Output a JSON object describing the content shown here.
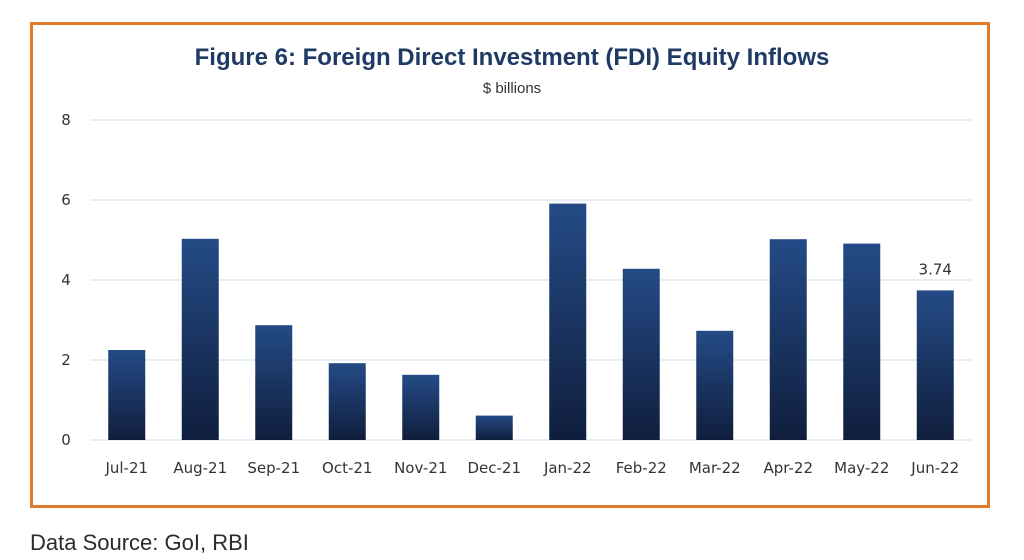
{
  "chart_data": {
    "type": "bar",
    "title": "Figure 6: Foreign Direct Investment (FDI) Equity Inflows",
    "subtitle": "$ billions",
    "categories": [
      "Jul-21",
      "Aug-21",
      "Sep-21",
      "Oct-21",
      "Nov-21",
      "Dec-21",
      "Jan-22",
      "Feb-22",
      "Mar-22",
      "Apr-22",
      "May-22",
      "Jun-22"
    ],
    "values": [
      2.25,
      5.03,
      2.87,
      1.92,
      1.63,
      0.61,
      5.91,
      4.28,
      2.73,
      5.02,
      4.91,
      3.74
    ],
    "ylim": [
      0,
      8
    ],
    "yticks": [
      0,
      2,
      4,
      6,
      8
    ],
    "grid": true,
    "data_labels": [
      {
        "category": "Jun-22",
        "text": "3.74"
      }
    ],
    "colors": {
      "bar_top": "#244B86",
      "bar_bottom": "#101E3D",
      "grid": "#D6E2EE",
      "frame": "#E07B2C",
      "title": "#1F3A64"
    }
  },
  "footer": {
    "source": "Data Source: GoI, RBI"
  }
}
